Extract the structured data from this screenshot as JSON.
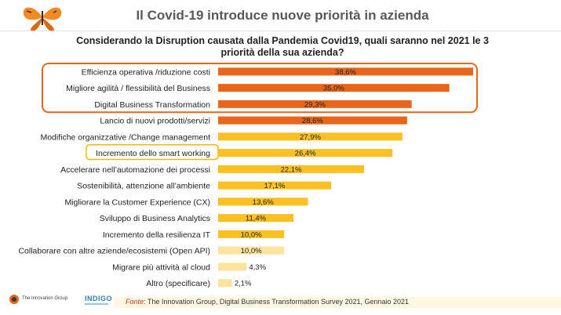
{
  "title": "Il Covid-19 introduce nuove priorità in azienda",
  "question": "Considerando la Disruption causata dalla Pandemia Covid19, quali saranno nel 2021 le 3 priorità della sua azienda?",
  "source_prefix": "Fonte",
  "source_text": ": The Innovation Group, Digital Business Transformation Survey 2021, Gennaio 2021",
  "logos": {
    "left_text": "The Innovation Group",
    "right_text": "INDIGO"
  },
  "colors": {
    "dark_orange": "#e8651a",
    "yellow": "#fcc021",
    "light_yellow": "#fde49e",
    "highlight_orange": "#e8651a",
    "highlight_yellow": "#f5b800"
  },
  "chart_data": {
    "type": "bar",
    "orientation": "horizontal",
    "categories": [
      "Efficienza operativa /riduzione costi",
      "Migliore agilità / flessibilità del Business",
      "Digital Business Transformation",
      "Lancio di nuovi prodotti/servizi",
      "Modifiche organizzative /Change management",
      "Incremento dello smart working",
      "Accelerare nell’automazione dei processi",
      "Sostenibilità, attenzione all’ambiente",
      "Migliorare la Customer Experience (CX)",
      "Sviluppo di Business Analytics",
      "Incremento della resilienza IT",
      "Collaborare con altre aziende/ecosistemi (Open API)",
      "Migrare più attività al cloud",
      "Altro (specificare)"
    ],
    "values": [
      38.6,
      35.0,
      29.3,
      28.6,
      27.9,
      26.4,
      22.1,
      17.1,
      13.6,
      11.4,
      10.0,
      10.0,
      4.3,
      2.1
    ],
    "value_labels": [
      "38,6%",
      "35,0%",
      "29,3%",
      "28,6%",
      "27,9%",
      "26,4%",
      "22,1%",
      "17,1%",
      "13,6%",
      "11,4%",
      "10,0%",
      "10,0%",
      "4,3%",
      "2,1%"
    ],
    "bar_colors": [
      "#e8651a",
      "#e8651a",
      "#e8651a",
      "#e8651a",
      "#fcc021",
      "#fcc021",
      "#fcc021",
      "#fcc021",
      "#fcc021",
      "#fcc021",
      "#fcc021",
      "#fde49e",
      "#fde49e",
      "#fde49e"
    ],
    "highlight_groups": [
      {
        "rows": [
          0,
          1,
          2
        ],
        "color": "#e8651a"
      },
      {
        "rows": [
          5,
          5
        ],
        "color": "#f5b800"
      }
    ],
    "xlim": [
      0,
      40
    ],
    "grid": false,
    "legend": "none"
  }
}
